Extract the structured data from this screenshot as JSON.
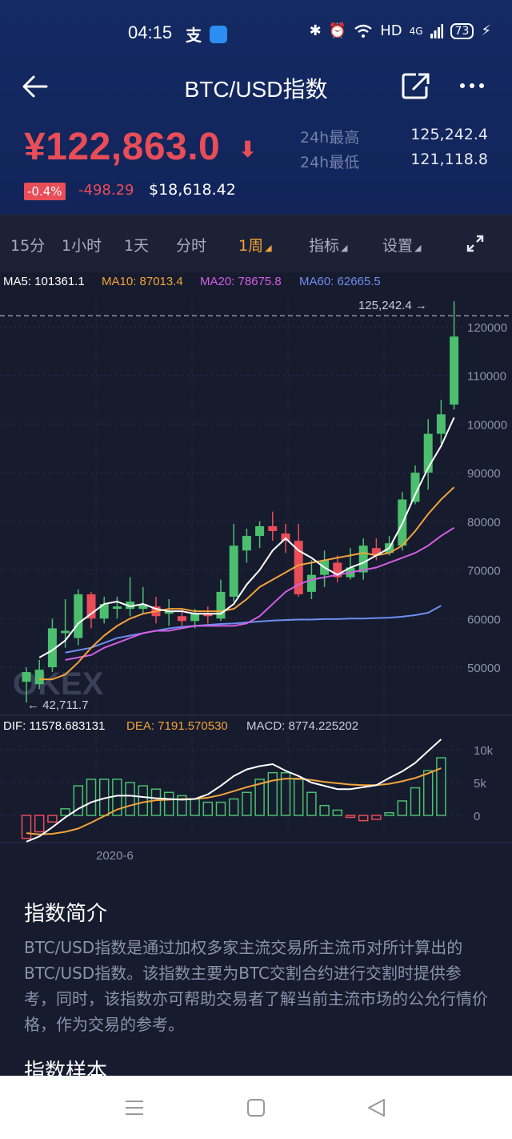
{
  "status_bar": {
    "time": "04:15",
    "network": "HD",
    "signal": "4G",
    "battery": "73"
  },
  "header": {
    "title": "BTC/USD指数"
  },
  "price": {
    "main": "¥122,863.0",
    "change_pct": "-0.4%",
    "change_abs": "-498.29",
    "usd": "$18,618.42",
    "high_label": "24h最高",
    "high_value": "125,242.4",
    "low_label": "24h最低",
    "low_value": "121,118.8"
  },
  "tabs": [
    {
      "label": "15分"
    },
    {
      "label": "1小时"
    },
    {
      "label": "1天"
    },
    {
      "label": "分时"
    },
    {
      "label": "1周"
    },
    {
      "label": "指标"
    },
    {
      "label": "设置"
    }
  ],
  "colors": {
    "up": "#4bbf6e",
    "down": "#e84d58",
    "accent": "#f2a33a",
    "ma5": "#ffffff",
    "ma10": "#f2a33a",
    "ma20": "#d45ee3",
    "ma60": "#6f8ef0"
  },
  "chart_data": {
    "type": "candlestick",
    "ma_legend": {
      "ma5": "MA5: 101361.1",
      "ma10": "MA10: 87013.4",
      "ma20": "MA20: 78675.8",
      "ma60": "MA60: 62665.5"
    },
    "price_axis_ticks": [
      "120000",
      "110000",
      "100000",
      "90000",
      "80000",
      "70000",
      "60000",
      "50000"
    ],
    "high_label": "125,242.4 →",
    "low_label": "← 42,711.7",
    "watermark": "OKEX",
    "macd_legend": {
      "dif": "DIF: 11578.683131",
      "dea": "DEA: 7191.570530",
      "macd": "MACD: 8774.225202"
    },
    "macd_axis_ticks": [
      "10k",
      "5k",
      "0"
    ],
    "x_tick": "2020-6",
    "candles": [
      {
        "o": 47000,
        "c": 49000,
        "h": 50000,
        "l": 42711.7
      },
      {
        "o": 46500,
        "c": 49500,
        "h": 51500,
        "l": 45500
      },
      {
        "o": 50000,
        "c": 58000,
        "h": 60000,
        "l": 49000
      },
      {
        "o": 57000,
        "c": 57500,
        "h": 64000,
        "l": 54000
      },
      {
        "o": 56000,
        "c": 65000,
        "h": 66000,
        "l": 54500
      },
      {
        "o": 65000,
        "c": 60000,
        "h": 65500,
        "l": 58000
      },
      {
        "o": 60000,
        "c": 63000,
        "h": 64500,
        "l": 59000
      },
      {
        "o": 62000,
        "c": 62500,
        "h": 64500,
        "l": 60000
      },
      {
        "o": 62000,
        "c": 63500,
        "h": 68500,
        "l": 60500
      },
      {
        "o": 62000,
        "c": 63000,
        "h": 66500,
        "l": 61000
      },
      {
        "o": 62500,
        "c": 60500,
        "h": 64500,
        "l": 59000
      },
      {
        "o": 61000,
        "c": 61500,
        "h": 64000,
        "l": 58500
      },
      {
        "o": 60500,
        "c": 59500,
        "h": 62000,
        "l": 58500
      },
      {
        "o": 59500,
        "c": 61000,
        "h": 62000,
        "l": 58000
      },
      {
        "o": 61000,
        "c": 60500,
        "h": 62500,
        "l": 59000
      },
      {
        "o": 60000,
        "c": 65500,
        "h": 68000,
        "l": 59500
      },
      {
        "o": 64500,
        "c": 75000,
        "h": 79500,
        "l": 63500
      },
      {
        "o": 74000,
        "c": 77000,
        "h": 78500,
        "l": 71500
      },
      {
        "o": 77000,
        "c": 79000,
        "h": 80000,
        "l": 74500
      },
      {
        "o": 79000,
        "c": 78000,
        "h": 82000,
        "l": 76000
      },
      {
        "o": 77500,
        "c": 76000,
        "h": 79500,
        "l": 73500
      },
      {
        "o": 76000,
        "c": 65000,
        "h": 79500,
        "l": 64500
      },
      {
        "o": 65500,
        "c": 69000,
        "h": 72000,
        "l": 64000
      },
      {
        "o": 69000,
        "c": 72000,
        "h": 74000,
        "l": 66500
      },
      {
        "o": 71500,
        "c": 68500,
        "h": 73000,
        "l": 67500
      },
      {
        "o": 68500,
        "c": 70500,
        "h": 74500,
        "l": 68000
      },
      {
        "o": 69500,
        "c": 75000,
        "h": 76500,
        "l": 68000
      },
      {
        "o": 74500,
        "c": 73000,
        "h": 76500,
        "l": 72000
      },
      {
        "o": 73500,
        "c": 75500,
        "h": 77000,
        "l": 73000
      },
      {
        "o": 75000,
        "c": 84500,
        "h": 86000,
        "l": 74000
      },
      {
        "o": 84000,
        "c": 90000,
        "h": 91500,
        "l": 83500
      },
      {
        "o": 90000,
        "c": 98000,
        "h": 101000,
        "l": 86500
      },
      {
        "o": 98000,
        "c": 102000,
        "h": 105000,
        "l": 96000
      },
      {
        "o": 104000,
        "c": 118000,
        "h": 125242.4,
        "l": 103000
      }
    ],
    "ma5": [
      52000,
      53500,
      55500,
      59000,
      61000,
      63000,
      63500,
      62500,
      63000,
      62000,
      61500,
      61500,
      61000,
      61000,
      61000,
      63000,
      67000,
      70000,
      74000,
      76500,
      74000,
      72500,
      70500,
      69000,
      70500,
      71500,
      73000,
      74500,
      79500,
      85500,
      91000,
      95500,
      101361.1
    ],
    "ma10": [
      47500,
      47500,
      48500,
      51000,
      54000,
      56500,
      58500,
      60000,
      61000,
      61500,
      62000,
      62000,
      61500,
      61500,
      61500,
      62000,
      64000,
      66500,
      68000,
      69500,
      71000,
      71500,
      72000,
      72500,
      73000,
      73500,
      73000,
      73500,
      75000,
      78000,
      81500,
      84500,
      87013.4
    ],
    "ma20": [
      51500,
      52000,
      52500,
      54000,
      55000,
      56000,
      57000,
      57500,
      57500,
      58000,
      58500,
      58500,
      58500,
      58500,
      59000,
      60500,
      63000,
      65500,
      67000,
      68000,
      68500,
      69000,
      69500,
      70000,
      70500,
      71500,
      72500,
      73500,
      75000,
      77000,
      78675.8
    ],
    "ma60": [
      53000,
      53500,
      54000,
      55000,
      56000,
      56500,
      57000,
      57500,
      58000,
      58300,
      58500,
      58700,
      58900,
      59000,
      59200,
      59400,
      59600,
      59700,
      59800,
      59800,
      59900,
      59900,
      60000,
      60000,
      60100,
      60200,
      60400,
      60700,
      61200,
      62665.5
    ],
    "macd_hist": [
      -3500,
      -2500,
      -1000,
      1000,
      4500,
      5500,
      5500,
      5500,
      5000,
      4500,
      4000,
      3500,
      3000,
      2500,
      2000,
      2000,
      2500,
      3500,
      5500,
      6500,
      6500,
      5500,
      3500,
      1500,
      800,
      -300,
      -800,
      -600,
      400,
      2200,
      4200,
      6800,
      8774.2
    ],
    "dif": [
      -4000,
      -3200,
      -1800,
      -300,
      1000,
      2000,
      2600,
      3000,
      3000,
      2800,
      2600,
      2500,
      2400,
      2500,
      3200,
      4500,
      6000,
      7000,
      7500,
      7800,
      6800,
      6000,
      5000,
      4500,
      4000,
      4000,
      4300,
      4600,
      5700,
      6700,
      8000,
      9800,
      11578.7
    ],
    "dea": [
      -2700,
      -2900,
      -2800,
      -2500,
      -2000,
      -1100,
      -100,
      900,
      1500,
      2000,
      2300,
      2400,
      2500,
      2500,
      2700,
      3100,
      3700,
      4300,
      4800,
      5300,
      5600,
      5600,
      5400,
      5100,
      4900,
      4700,
      4600,
      4600,
      4800,
      5200,
      5700,
      6400,
      7191.6
    ]
  },
  "intro": {
    "title": "指数简介",
    "body": "BTC/USD指数是通过加权多家主流交易所主流币对所计算出的BTC/USD指数。该指数主要为BTC交割合约进行交割时提供参考，同时，该指数亦可帮助交易者了解当前主流市场的公允行情价格，作为交易的参考。",
    "title2": "指数样本"
  }
}
